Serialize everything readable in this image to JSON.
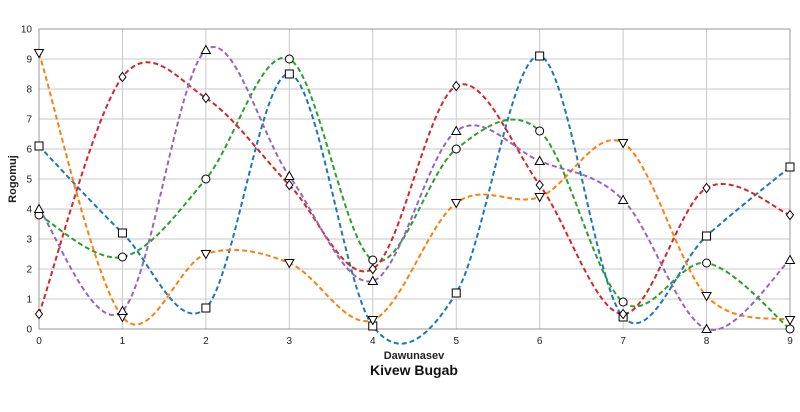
{
  "chart_data": {
    "type": "line",
    "title": "Kivew Bugab",
    "xlabel": "Dawunasev",
    "ylabel": "Rogomuj",
    "xlim": [
      0,
      9
    ],
    "ylim": [
      0,
      10
    ],
    "x_ticks": [
      0,
      1,
      2,
      3,
      4,
      5,
      6,
      7,
      8,
      9
    ],
    "y_ticks": [
      0,
      1,
      2,
      3,
      4,
      5,
      6,
      7,
      8,
      9,
      10
    ],
    "grid": true,
    "smooth": true,
    "x": [
      0,
      1,
      2,
      3,
      4,
      5,
      6,
      7,
      8,
      9
    ],
    "series": [
      {
        "color": "#1f77b4",
        "marker": "square",
        "values": [
          6.1,
          3.2,
          0.7,
          8.5,
          0.1,
          1.2,
          9.1,
          0.4,
          3.1,
          5.4
        ]
      },
      {
        "color": "#ff7f0e",
        "marker": "triangle-down",
        "values": [
          9.2,
          0.4,
          2.5,
          2.2,
          0.3,
          4.2,
          4.4,
          6.2,
          1.1,
          0.3
        ]
      },
      {
        "color": "#2ca02c",
        "marker": "circle",
        "values": [
          3.8,
          2.4,
          5.0,
          9.0,
          2.3,
          6.0,
          6.6,
          0.9,
          2.2,
          0.0
        ]
      },
      {
        "color": "#d62728",
        "marker": "diamond",
        "values": [
          0.5,
          8.4,
          7.7,
          4.8,
          2.0,
          8.1,
          4.8,
          0.5,
          4.7,
          3.8
        ]
      },
      {
        "color": "#9467bd",
        "marker": "triangle-up",
        "values": [
          4.0,
          0.6,
          9.3,
          5.1,
          1.6,
          6.6,
          5.6,
          4.3,
          0.0,
          2.3
        ]
      }
    ]
  }
}
